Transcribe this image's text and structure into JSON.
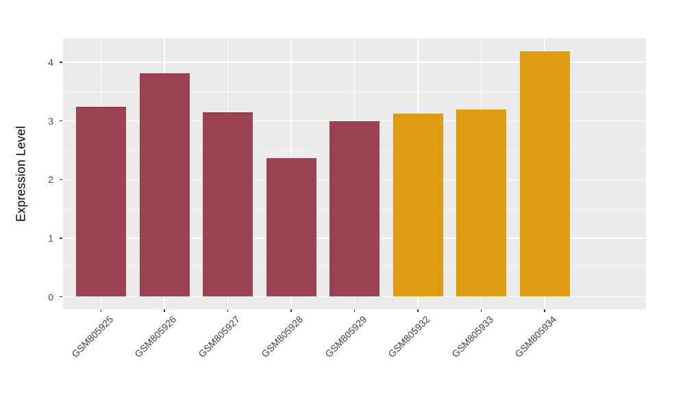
{
  "chart_data": {
    "type": "bar",
    "title": "",
    "xlabel": "",
    "ylabel": "Expression Level",
    "categories": [
      "GSM805925",
      "GSM805926",
      "GSM805927",
      "GSM805928",
      "GSM805929",
      "GSM805932",
      "GSM805933",
      "GSM805934"
    ],
    "values": [
      3.24,
      3.82,
      3.15,
      2.36,
      3.0,
      3.13,
      3.2,
      4.19
    ],
    "bar_colors": [
      "#9A4250",
      "#9A4250",
      "#9A4250",
      "#9A4250",
      "#9A4250",
      "#DF9B12",
      "#DF9B12",
      "#DF9B12"
    ],
    "yticks": [
      0,
      1,
      2,
      3,
      4
    ],
    "minor_yticks": [
      0.5,
      1.5,
      2.5,
      3.5
    ],
    "ylim": [
      -0.21,
      4.4
    ],
    "legend": "none",
    "grid": "white major and minor horizontal lines, white major vertical lines, on gray panel",
    "colors": {
      "panel_background": "#EBEBEB",
      "gridline": "#FFFFFF",
      "group_a_fill": "#9A4250",
      "group_b_fill": "#DF9B12",
      "axis_text": "#4D4D4D",
      "axis_title": "#000000",
      "tick_mark": "#333333",
      "figure_background": "#FFFFFF"
    }
  }
}
